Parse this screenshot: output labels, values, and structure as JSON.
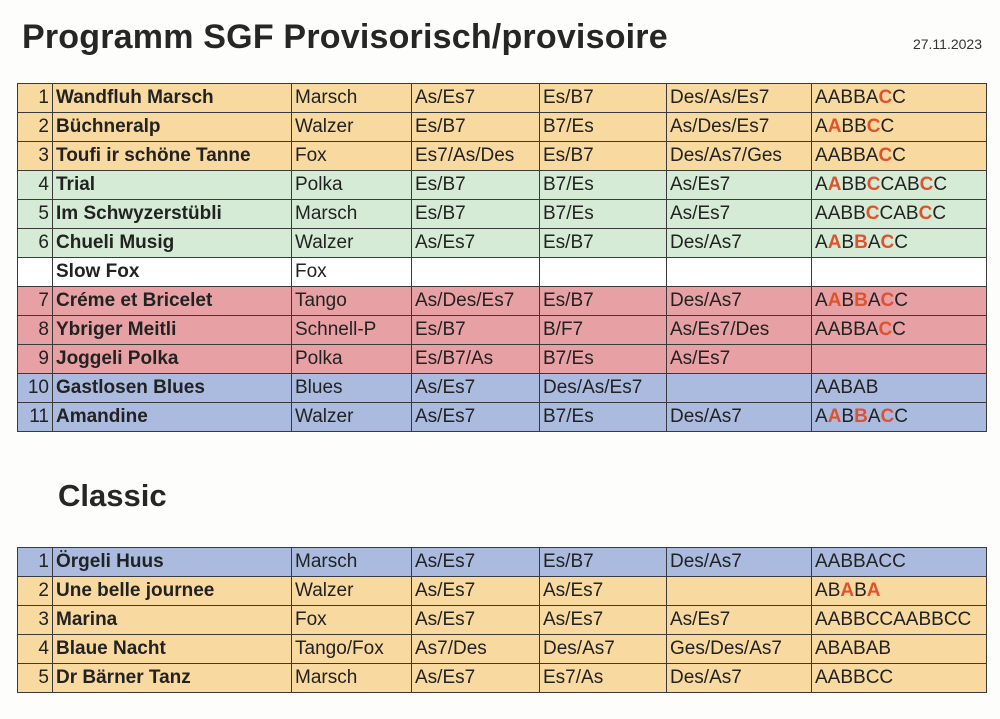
{
  "header": {
    "title": "Programm SGF Provisorisch/provisoire",
    "date": "27.11.2023"
  },
  "program": {
    "rows": [
      {
        "num": "1",
        "title": "Wandfluh Marsch",
        "type": "Marsch",
        "key1": "As/Es7",
        "key2": "Es/B7",
        "key3": "Des/As/Es7",
        "form": "AABBACC",
        "form_highlight": [
          5
        ],
        "color": "yellow"
      },
      {
        "num": "2",
        "title": "Büchneralp",
        "type": "Walzer",
        "key1": "Es/B7",
        "key2": "B7/Es",
        "key3": "As/Des/Es7",
        "form": "AABBCC",
        "form_highlight": [
          1,
          4
        ],
        "color": "yellow"
      },
      {
        "num": "3",
        "title": "Toufi ir schöne Tanne",
        "type": "Fox",
        "key1": "Es7/As/Des",
        "key2": "Es/B7",
        "key3": "Des/As7/Ges",
        "form": "AABBACC",
        "form_highlight": [
          5
        ],
        "color": "yellow"
      },
      {
        "num": "4",
        "title": "Trial",
        "type": "Polka",
        "key1": "Es/B7",
        "key2": "B7/Es",
        "key3": "As/Es7",
        "form": "AABBCCABCC",
        "form_highlight": [
          1,
          4,
          8
        ],
        "color": "green"
      },
      {
        "num": "5",
        "title": "Im Schwyzerstübli",
        "type": "Marsch",
        "key1": "Es/B7",
        "key2": "B7/Es",
        "key3": "As/Es7",
        "form": "AABBCCABCC",
        "form_highlight": [
          4,
          8
        ],
        "color": "green"
      },
      {
        "num": "6",
        "title": "Chueli Musig",
        "type": "Walzer",
        "key1": "As/Es7",
        "key2": "Es/B7",
        "key3": "Des/As7",
        "form": "AABBACC",
        "form_highlight": [
          1,
          3,
          5
        ],
        "color": "green"
      },
      {
        "num": "",
        "title": "Slow Fox",
        "type": "Fox",
        "key1": "",
        "key2": "",
        "key3": "",
        "form": "",
        "form_highlight": [],
        "color": "white"
      },
      {
        "num": "7",
        "title": "Créme et Bricelet",
        "type": "Tango",
        "key1": "As/Des/Es7",
        "key2": "Es/B7",
        "key3": "Des/As7",
        "form": "AABBACC",
        "form_highlight": [
          1,
          3,
          5
        ],
        "color": "red"
      },
      {
        "num": "8",
        "title": "Ybriger Meitli",
        "type": "Schnell-P",
        "key1": "Es/B7",
        "key2": "B/F7",
        "key3": "As/Es7/Des",
        "form": "AABBACC",
        "form_highlight": [
          5
        ],
        "color": "red"
      },
      {
        "num": "9",
        "title": "Joggeli Polka",
        "type": "Polka",
        "key1": "Es/B7/As",
        "key2": "B7/Es",
        "key3": "As/Es7",
        "form": "",
        "form_highlight": [],
        "color": "red"
      },
      {
        "num": "10",
        "title": "Gastlosen Blues",
        "type": "Blues",
        "key1": "As/Es7",
        "key2": "Des/As/Es7",
        "key3": "",
        "form": "AABAB",
        "form_highlight": [],
        "color": "blue"
      },
      {
        "num": "11",
        "title": "Amandine",
        "type": "Walzer",
        "key1": "As/Es7",
        "key2": "B7/Es",
        "key3": "Des/As7",
        "form": "AABBACC",
        "form_highlight": [
          1,
          3,
          5
        ],
        "color": "blue"
      }
    ]
  },
  "classic": {
    "heading": "Classic",
    "rows": [
      {
        "num": "1",
        "title": "Örgeli Huus",
        "type": "Marsch",
        "key1": "As/Es7",
        "key2": "Es/B7",
        "key3": "Des/As7",
        "form": "AABBACC",
        "form_highlight": [],
        "color": "blue"
      },
      {
        "num": "2",
        "title": "Une belle journee",
        "type": "Walzer",
        "key1": "As/Es7",
        "key2": "As/Es7",
        "key3": "",
        "form": "ABABA",
        "form_highlight": [
          2,
          4
        ],
        "color": "yellow"
      },
      {
        "num": "3",
        "title": "Marina",
        "type": "Fox",
        "key1": "As/Es7",
        "key2": "As/Es7",
        "key3": "As/Es7",
        "form": "AABBCCAABBCC",
        "form_highlight": [],
        "color": "yellow"
      },
      {
        "num": "4",
        "title": "Blaue Nacht",
        "type": "Tango/Fox",
        "key1": "As7/Des",
        "key2": "Des/As7",
        "key3": "Ges/Des/As7",
        "form": "ABABAB",
        "form_highlight": [],
        "color": "yellow"
      },
      {
        "num": "5",
        "title": "Dr Bärner Tanz",
        "type": "Marsch",
        "key1": "As/Es7",
        "key2": "Es7/As",
        "key3": "Des/As7",
        "form": "AABBCC",
        "form_highlight": [],
        "color": "yellow"
      }
    ]
  },
  "colors": {
    "yellow": "#f8d9a0",
    "green": "#d6ebd6",
    "white": "#ffffff",
    "red": "#e7a0a4",
    "blue": "#aabbdf",
    "highlight_red": "#e0522d"
  }
}
